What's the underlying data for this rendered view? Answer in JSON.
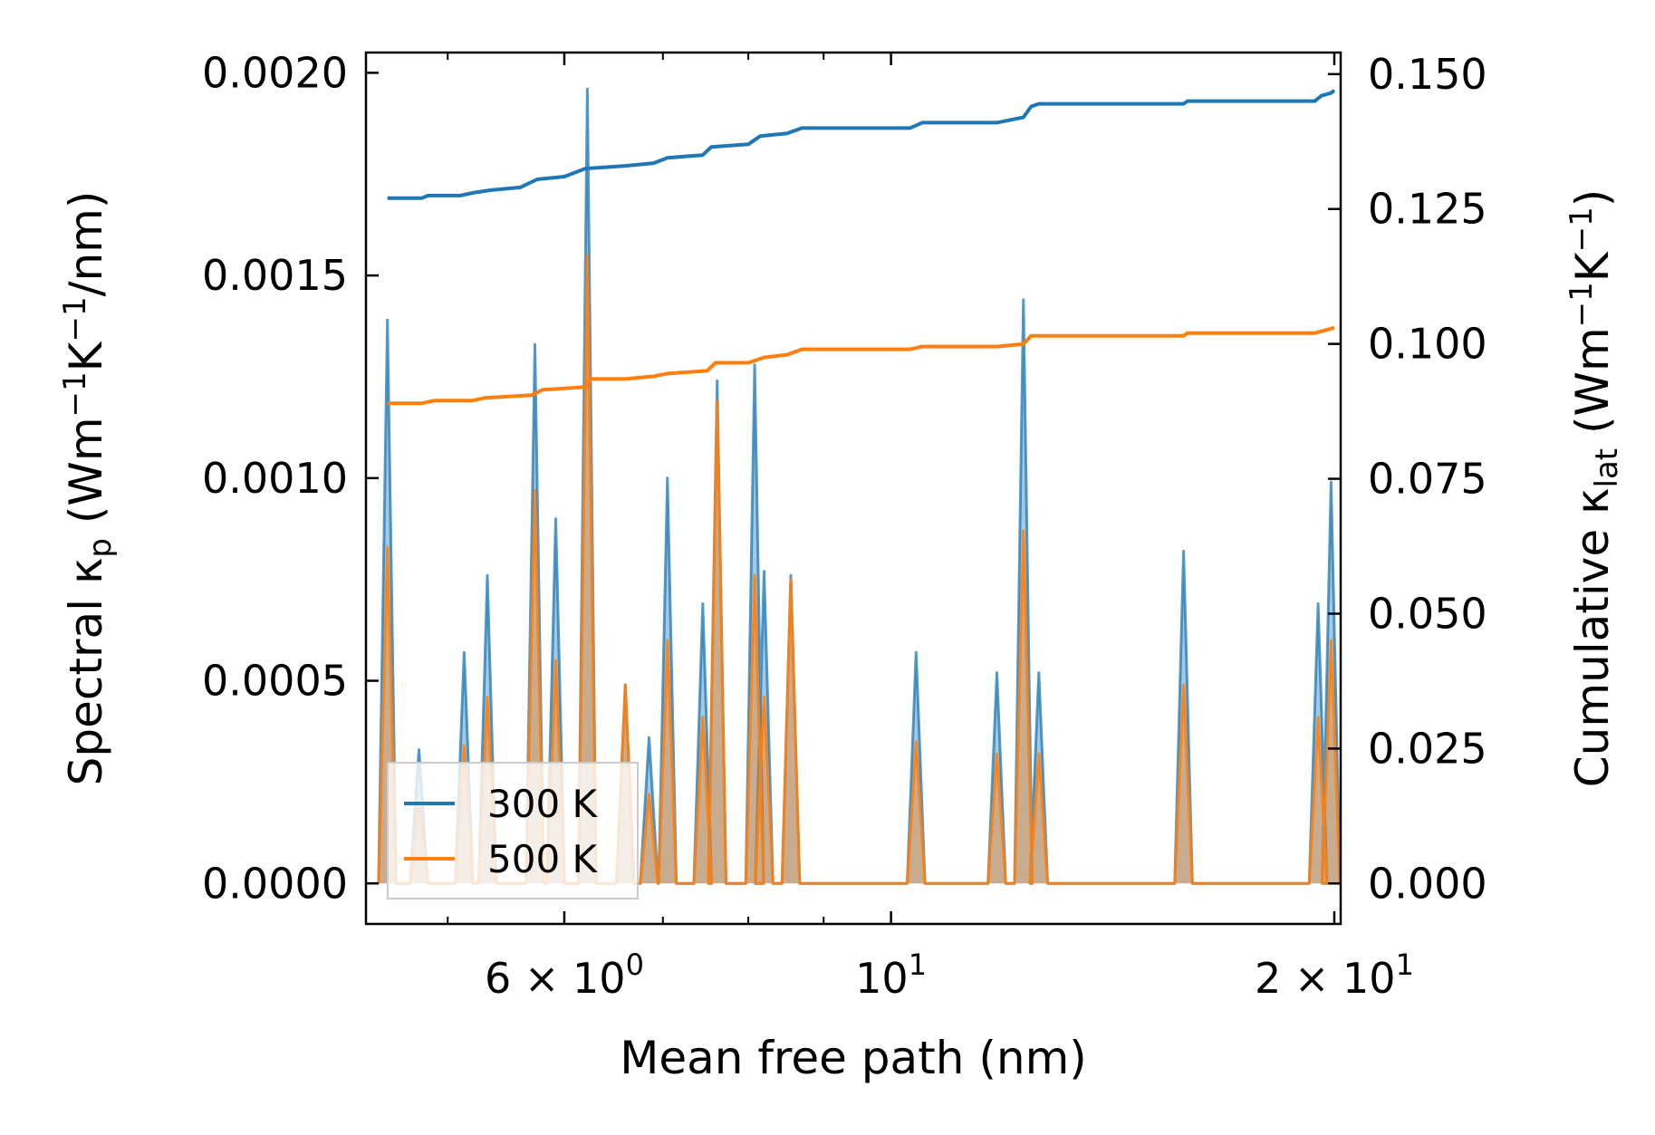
{
  "chart_data": {
    "type": "line",
    "xscale": "log",
    "xlabel": "Mean free path (nm)",
    "ylabel_left": {
      "prefix": "Spectral κ",
      "sub": "p",
      "unit_pre": " (Wm",
      "sup1": "−1",
      "mid": "K",
      "sup2": "−1",
      "unit_post": "/nm)"
    },
    "ylabel_right": {
      "prefix": "Cumulative κ",
      "sub": "lat",
      "unit_pre": " (Wm",
      "sup1": "−1",
      "mid": "K",
      "sup2": "−1",
      "unit_post": ")"
    },
    "xlim": [
      4.4,
      20.2
    ],
    "ylim_left": [
      -0.0001,
      0.00205
    ],
    "ylim_right": [
      -0.0075,
      0.154
    ],
    "xticks": [
      {
        "value": 6,
        "base": "6 × 10",
        "exp": "0"
      },
      {
        "value": 10,
        "base": "10",
        "exp": "1"
      },
      {
        "value": 20,
        "base": "2 × 10",
        "exp": "1"
      }
    ],
    "yticks_left": [
      "0.0000",
      "0.0005",
      "0.0010",
      "0.0015",
      "0.0020"
    ],
    "yticks_left_values": [
      0,
      0.0005,
      0.001,
      0.0015,
      0.002
    ],
    "yticks_right": [
      "0.000",
      "0.025",
      "0.050",
      "0.075",
      "0.100",
      "0.125",
      "0.150"
    ],
    "yticks_right_values": [
      0,
      0.025,
      0.05,
      0.075,
      0.1,
      0.125,
      0.15
    ],
    "series": [
      {
        "name": "300 K",
        "color": "#1f77b4",
        "spectral_peaks": [
          [
            4.55,
            0.00139
          ],
          [
            4.78,
            0.00033
          ],
          [
            5.13,
            0.00057
          ],
          [
            5.32,
            0.00076
          ],
          [
            5.73,
            0.00133
          ],
          [
            5.92,
            0.0009
          ],
          [
            6.22,
            0.00196
          ],
          [
            6.6,
            0.00049
          ],
          [
            6.85,
            0.00036
          ],
          [
            7.05,
            0.001
          ],
          [
            7.45,
            0.00069
          ],
          [
            7.62,
            0.00124
          ],
          [
            8.08,
            0.00128
          ],
          [
            8.2,
            0.00077
          ],
          [
            8.55,
            0.00076
          ],
          [
            10.4,
            0.00057
          ],
          [
            11.8,
            0.00052
          ],
          [
            12.3,
            0.00144
          ],
          [
            12.6,
            0.00052
          ],
          [
            15.8,
            0.00082
          ],
          [
            19.5,
            0.00069
          ],
          [
            19.9,
            0.00099
          ]
        ],
        "cumulative": [
          [
            4.55,
            0.127
          ],
          [
            4.8,
            0.127
          ],
          [
            4.85,
            0.1275
          ],
          [
            5.1,
            0.1275
          ],
          [
            5.2,
            0.128
          ],
          [
            5.35,
            0.1285
          ],
          [
            5.6,
            0.129
          ],
          [
            5.75,
            0.1305
          ],
          [
            6.0,
            0.131
          ],
          [
            6.2,
            0.1325
          ],
          [
            6.6,
            0.133
          ],
          [
            6.9,
            0.1335
          ],
          [
            7.05,
            0.1345
          ],
          [
            7.45,
            0.135
          ],
          [
            7.55,
            0.1365
          ],
          [
            8.0,
            0.137
          ],
          [
            8.15,
            0.1385
          ],
          [
            8.5,
            0.139
          ],
          [
            8.7,
            0.14
          ],
          [
            9.5,
            0.14
          ],
          [
            10.3,
            0.14
          ],
          [
            10.5,
            0.141
          ],
          [
            11.8,
            0.141
          ],
          [
            12.3,
            0.142
          ],
          [
            12.45,
            0.144
          ],
          [
            12.6,
            0.1445
          ],
          [
            13.0,
            0.1445
          ],
          [
            15.8,
            0.1445
          ],
          [
            15.9,
            0.145
          ],
          [
            19.4,
            0.145
          ],
          [
            19.6,
            0.146
          ],
          [
            19.9,
            0.1465
          ],
          [
            20.0,
            0.147
          ]
        ]
      },
      {
        "name": "500 K",
        "color": "#ff7f0e",
        "spectral_peaks": [
          [
            4.55,
            0.00083
          ],
          [
            4.78,
            0.0002
          ],
          [
            5.13,
            0.00034
          ],
          [
            5.32,
            0.00046
          ],
          [
            5.73,
            0.00097
          ],
          [
            5.92,
            0.00055
          ],
          [
            6.22,
            0.00155
          ],
          [
            6.6,
            0.00049
          ],
          [
            6.85,
            0.00022
          ],
          [
            7.05,
            0.0006
          ],
          [
            7.45,
            0.00041
          ],
          [
            7.62,
            0.00119
          ],
          [
            8.08,
            0.00076
          ],
          [
            8.2,
            0.00046
          ],
          [
            8.55,
            0.00075
          ],
          [
            10.4,
            0.00035
          ],
          [
            11.8,
            0.00032
          ],
          [
            12.3,
            0.00087
          ],
          [
            12.6,
            0.00032
          ],
          [
            15.8,
            0.00049
          ],
          [
            19.5,
            0.00041
          ],
          [
            19.9,
            0.0006
          ]
        ],
        "cumulative": [
          [
            4.55,
            0.089
          ],
          [
            4.8,
            0.089
          ],
          [
            4.9,
            0.0895
          ],
          [
            5.2,
            0.0895
          ],
          [
            5.3,
            0.09
          ],
          [
            5.7,
            0.0905
          ],
          [
            5.8,
            0.0915
          ],
          [
            6.2,
            0.092
          ],
          [
            6.25,
            0.0935
          ],
          [
            6.6,
            0.0935
          ],
          [
            6.9,
            0.094
          ],
          [
            7.05,
            0.0945
          ],
          [
            7.5,
            0.095
          ],
          [
            7.6,
            0.0965
          ],
          [
            8.0,
            0.0965
          ],
          [
            8.2,
            0.0975
          ],
          [
            8.5,
            0.098
          ],
          [
            8.7,
            0.099
          ],
          [
            9.5,
            0.099
          ],
          [
            10.3,
            0.099
          ],
          [
            10.5,
            0.0995
          ],
          [
            11.8,
            0.0995
          ],
          [
            12.3,
            0.1
          ],
          [
            12.45,
            0.1015
          ],
          [
            13.0,
            0.1015
          ],
          [
            15.8,
            0.1015
          ],
          [
            15.9,
            0.102
          ],
          [
            19.4,
            0.102
          ],
          [
            19.7,
            0.1025
          ],
          [
            20.0,
            0.103
          ]
        ]
      }
    ],
    "legend": {
      "position": "lower-left",
      "entries": [
        "300 K",
        "500 K"
      ]
    }
  }
}
